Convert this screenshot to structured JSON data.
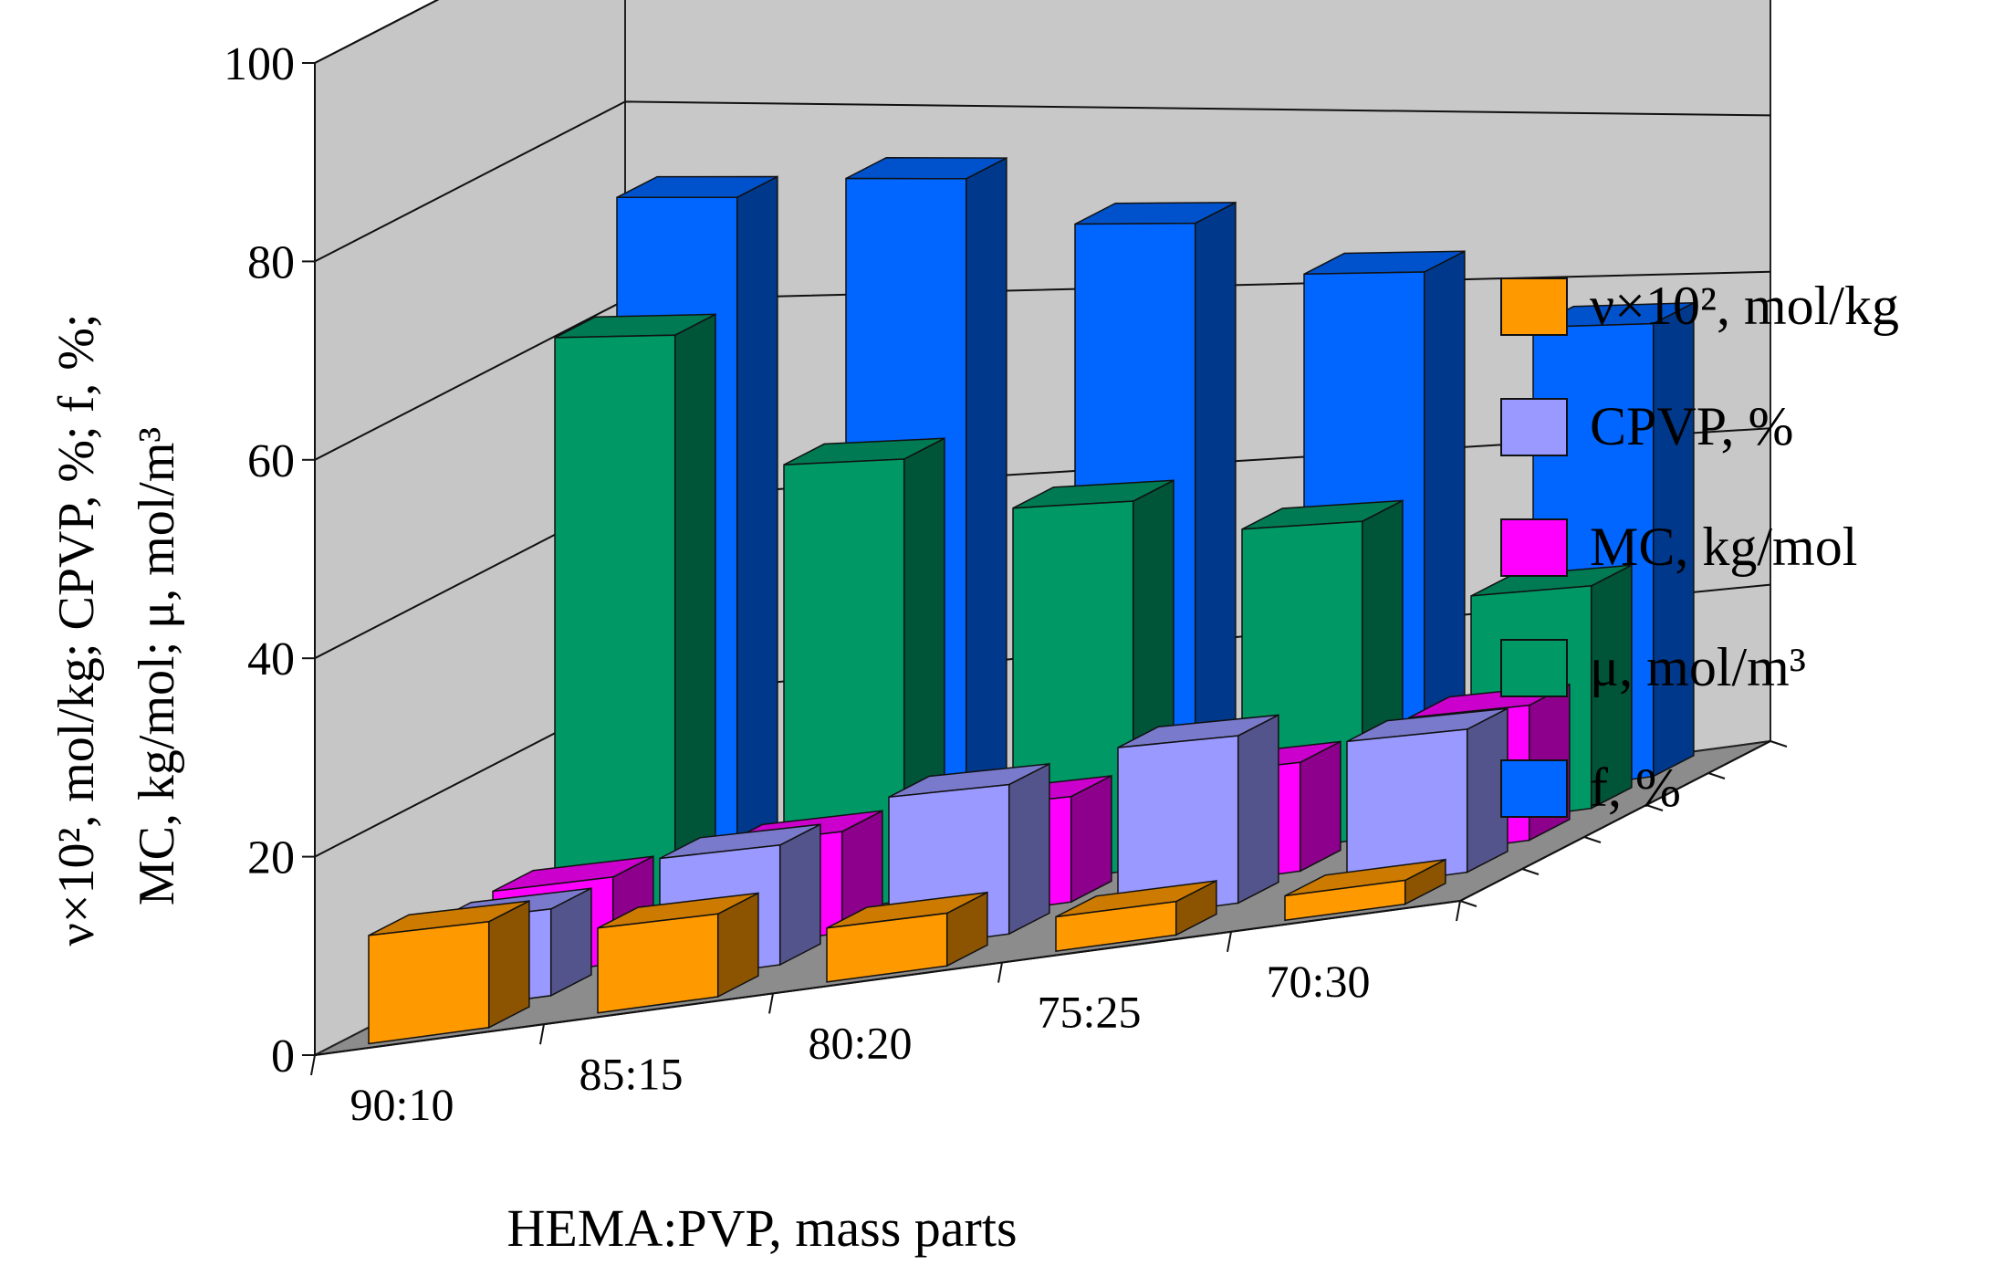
{
  "chart_data": {
    "type": "bar",
    "projection": "3d-perspective",
    "title": "",
    "categories": [
      "90:10",
      "85:15",
      "80:20",
      "75:25",
      "70:30"
    ],
    "xlabel": "HEMA:PVP, mass parts",
    "ylabel_lines": [
      "ν×10², mol/kg;  CPVP, %;  f, %;",
      "MC, kg/mol;    μ, mol/m³"
    ],
    "ylim": [
      0,
      100
    ],
    "yticks": [
      0,
      20,
      40,
      60,
      80,
      100
    ],
    "ytick_labels": [
      "0",
      "20",
      "40",
      "60",
      "80",
      "100"
    ],
    "grid": true,
    "legend_position": "right",
    "series": [
      {
        "name": "ν×10², mol/kg",
        "color": "#FF9900",
        "values": [
          11,
          9,
          6,
          4,
          3
        ]
      },
      {
        "name": "CPVP, %",
        "color": "#9999FF",
        "values": [
          9,
          13,
          17,
          20,
          18
        ]
      },
      {
        "name": "MC, kg/mol",
        "color": "#FF00FF",
        "values": [
          9,
          11,
          12,
          13,
          17
        ]
      },
      {
        "name": "μ, mol/m³",
        "color": "#009966",
        "values": [
          62,
          48,
          42,
          38,
          28
        ]
      },
      {
        "name": "f, %",
        "color": "#0066FF",
        "values": [
          73,
          75,
          70,
          64,
          57
        ]
      }
    ]
  },
  "legend": {
    "items": [
      {
        "label": "ν×10², mol/kg",
        "color": "#FF9900"
      },
      {
        "label": "CPVP, %",
        "color": "#9999FF"
      },
      {
        "label": "MC, kg/mol",
        "color": "#FF00FF"
      },
      {
        "label": "μ, mol/m³",
        "color": "#009966"
      },
      {
        "label": "f, %",
        "color": "#0066FF"
      }
    ]
  }
}
